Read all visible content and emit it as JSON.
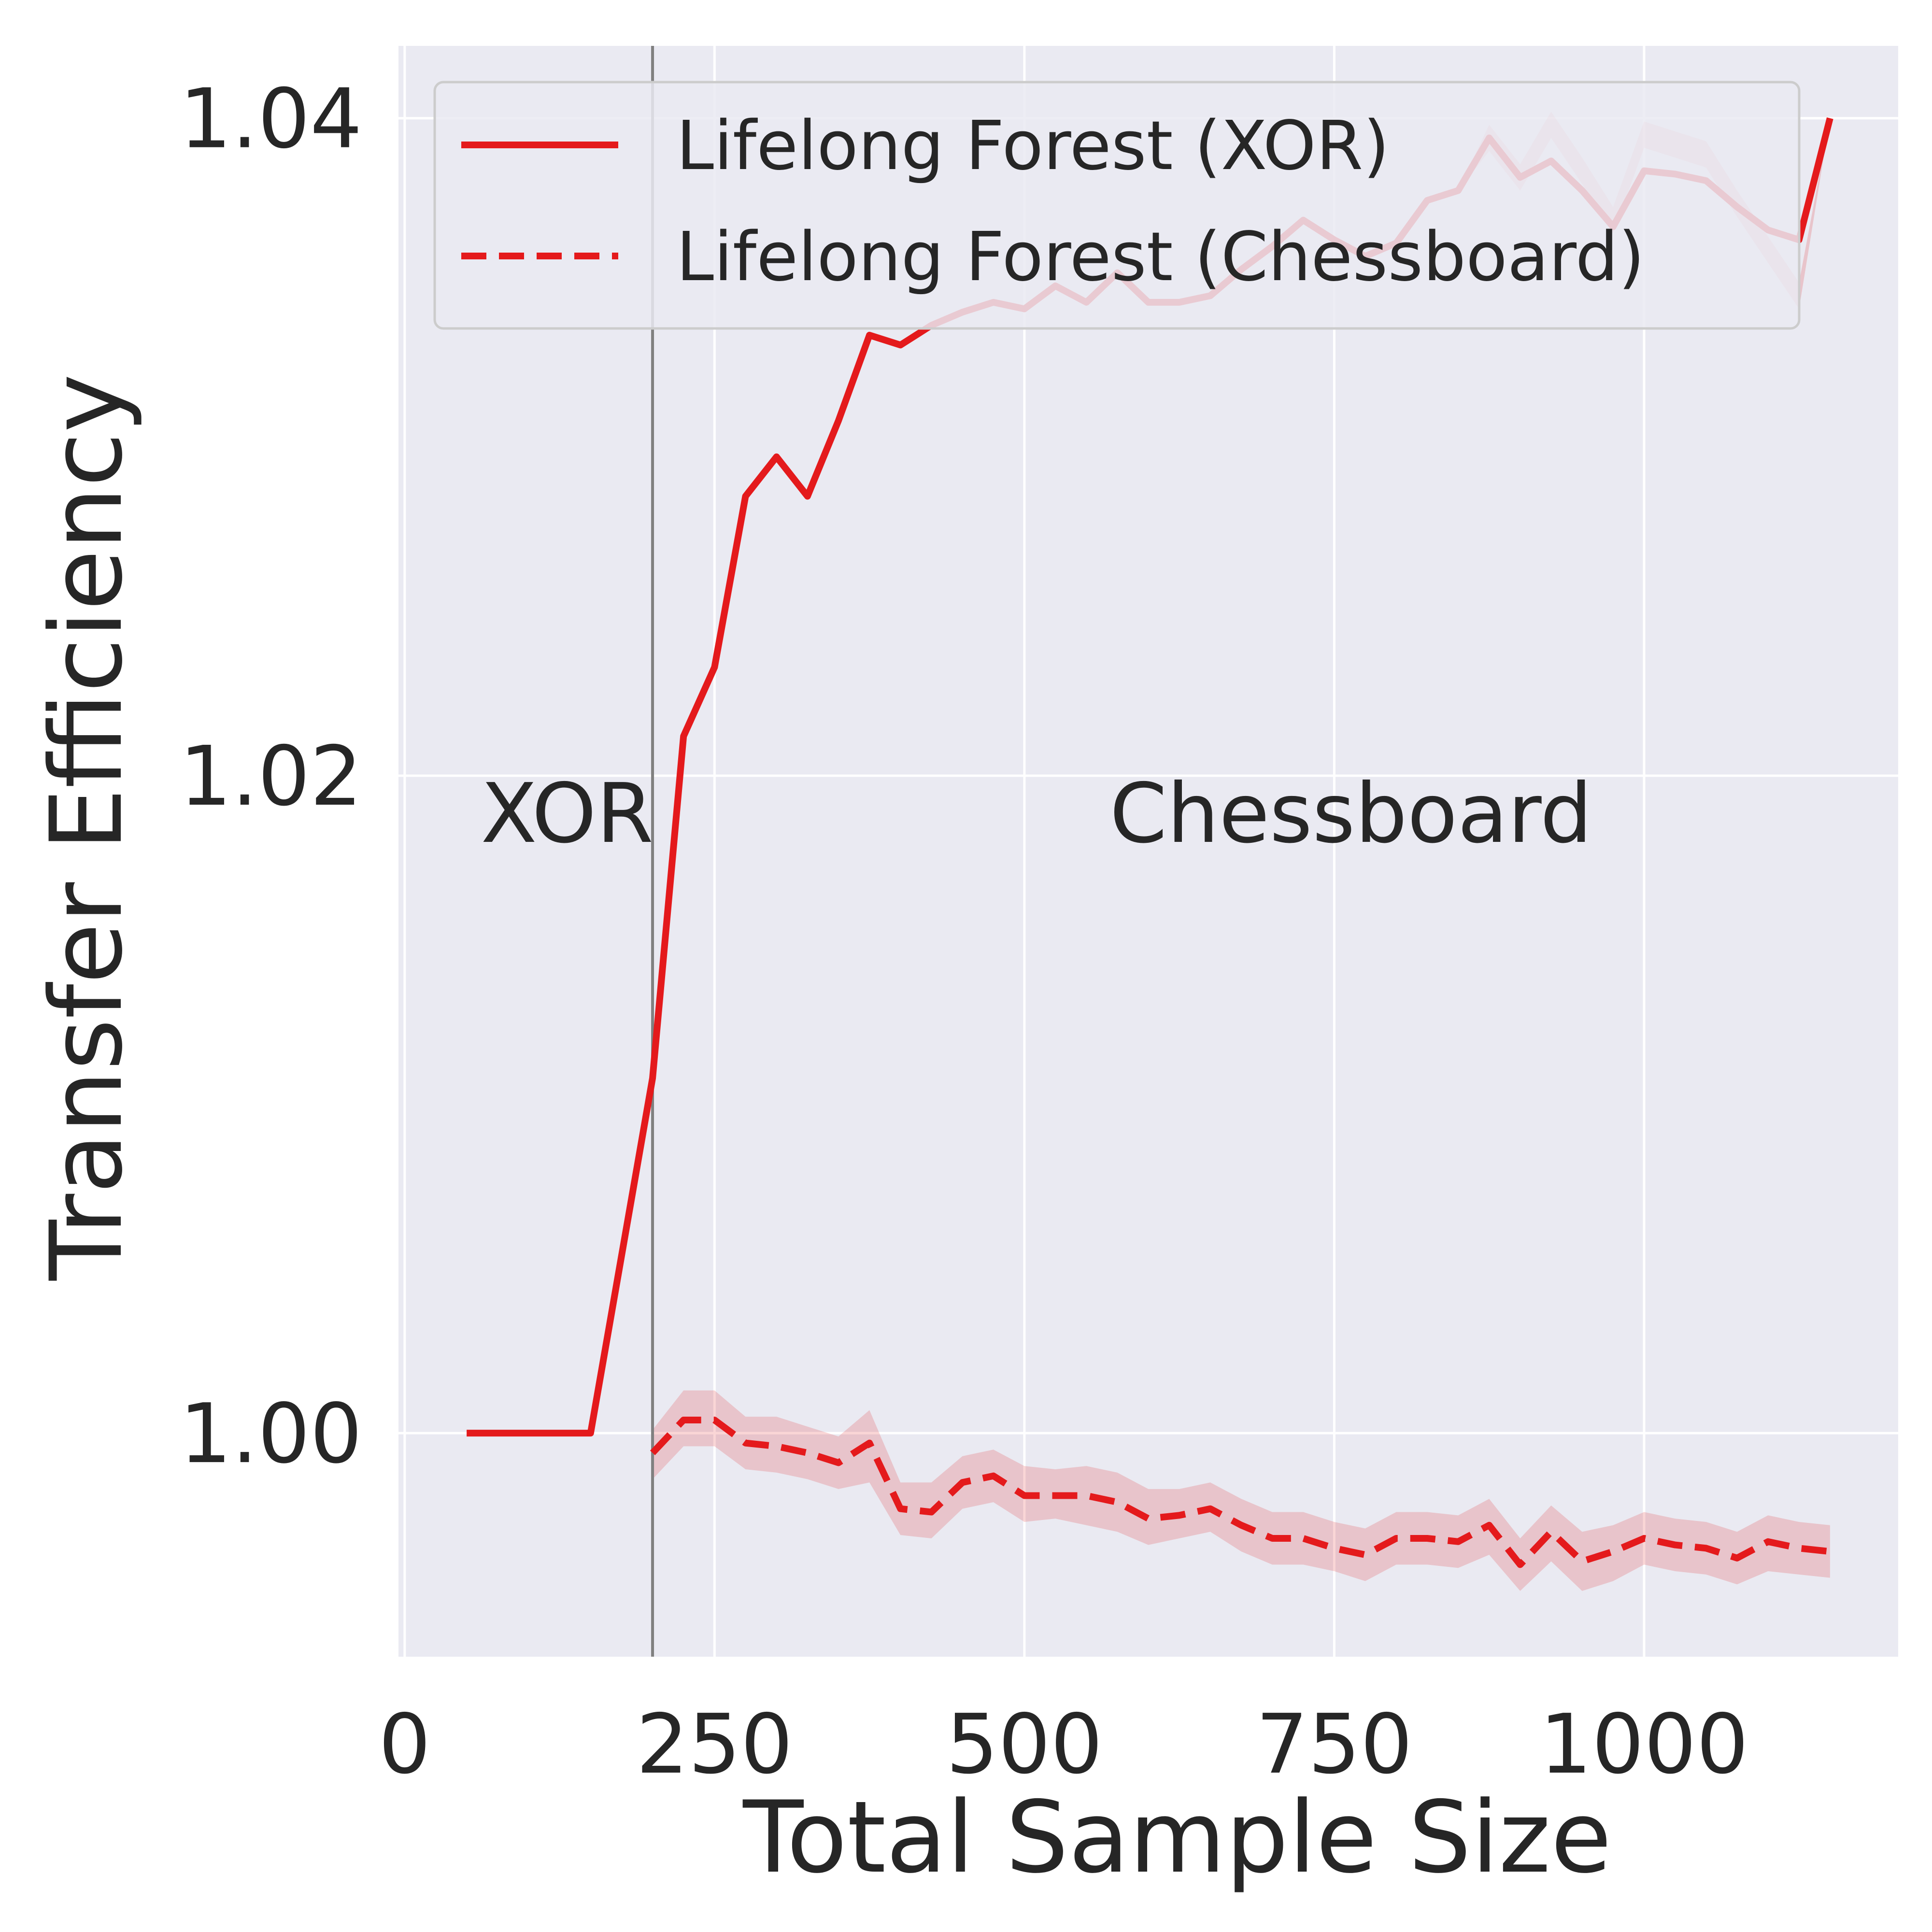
{
  "colors": {
    "background": "#ffffff",
    "plot_face": "#eaeaf2",
    "grid": "#ffffff",
    "line": "#e41a1c",
    "band": "#e41a1c",
    "divider": "#808080",
    "text": "#262626"
  },
  "chart_data": {
    "type": "line",
    "xlabel": "Total Sample Size",
    "ylabel": "Transfer Efficiency",
    "xlim": [
      -5,
      1205
    ],
    "ylim": [
      0.9932,
      1.0422
    ],
    "xticks": [
      0,
      250,
      500,
      750,
      1000
    ],
    "xtick_labels": [
      "0",
      "250",
      "500",
      "750",
      "1000"
    ],
    "yticks": [
      1.0,
      1.02,
      1.04
    ],
    "ytick_labels": [
      "1.00",
      "1.02",
      "1.04"
    ],
    "grid": true,
    "legend_position": "top-right",
    "vertical_line_x": 200,
    "annotations": [
      {
        "id": "xor",
        "text": "XOR",
        "x": 40,
        "y": 1.0185
      },
      {
        "id": "chess",
        "text": "Chessboard",
        "x": 600,
        "y": 1.0185
      }
    ],
    "series": [
      {
        "name": "Lifelong Forest (XOR)",
        "style": "solid",
        "x": [
          50,
          75,
          100,
          125,
          150,
          200,
          225,
          250,
          275,
          300,
          325,
          350,
          375,
          400,
          425,
          450,
          475,
          500,
          525,
          550,
          575,
          600,
          625,
          650,
          675,
          700,
          725,
          750,
          775,
          800,
          825,
          850,
          875,
          900,
          925,
          950,
          975,
          1000,
          1025,
          1050,
          1075,
          1100,
          1125,
          1150
        ],
        "y": [
          1.0,
          1.0,
          1.0,
          1.0,
          1.0,
          1.0108,
          1.0212,
          1.0233,
          1.0285,
          1.0297,
          1.0285,
          1.0308,
          1.0334,
          1.0331,
          1.0337,
          1.0341,
          1.0344,
          1.0342,
          1.0349,
          1.0344,
          1.0353,
          1.0344,
          1.0344,
          1.0346,
          1.0354,
          1.0361,
          1.0369,
          1.0363,
          1.0358,
          1.0362,
          1.0375,
          1.0378,
          1.0394,
          1.0382,
          1.0387,
          1.0378,
          1.0367,
          1.0384,
          1.0383,
          1.0381,
          1.0373,
          1.0366,
          1.0363,
          1.04
        ],
        "band_lower": [
          1.0,
          1.0,
          1.0,
          1.0,
          1.0,
          1.0108,
          1.0212,
          1.0233,
          1.0285,
          1.0297,
          1.0285,
          1.0308,
          1.0334,
          1.0331,
          1.0337,
          1.0341,
          1.0344,
          1.0342,
          1.0349,
          1.0344,
          1.0353,
          1.0344,
          1.0344,
          1.0346,
          1.0354,
          1.0361,
          1.0369,
          1.0363,
          1.0358,
          1.0362,
          1.0375,
          1.0378,
          1.039,
          1.0378,
          1.0394,
          1.038,
          1.0365,
          1.0391,
          1.0388,
          1.0385,
          1.037,
          1.0356,
          1.0342,
          1.04
        ],
        "band_upper": [
          1.0,
          1.0,
          1.0,
          1.0,
          1.0,
          1.0108,
          1.0212,
          1.0233,
          1.0285,
          1.0297,
          1.0285,
          1.0308,
          1.0334,
          1.0331,
          1.0337,
          1.0341,
          1.0344,
          1.0342,
          1.0349,
          1.0344,
          1.0353,
          1.0344,
          1.0344,
          1.0346,
          1.0354,
          1.0361,
          1.0369,
          1.0363,
          1.0358,
          1.0362,
          1.0375,
          1.0378,
          1.0398,
          1.0386,
          1.0402,
          1.0388,
          1.0373,
          1.0399,
          1.0396,
          1.0393,
          1.0378,
          1.0364,
          1.035,
          1.04
        ]
      },
      {
        "name": "Lifelong Forest (Chessboard)",
        "style": "dashed",
        "x": [
          200,
          225,
          250,
          275,
          300,
          325,
          350,
          375,
          400,
          425,
          450,
          475,
          500,
          525,
          550,
          575,
          600,
          625,
          650,
          675,
          700,
          725,
          750,
          775,
          800,
          825,
          850,
          875,
          900,
          925,
          950,
          975,
          1000,
          1025,
          1050,
          1075,
          1100,
          1125,
          1150
        ],
        "y": [
          0.9994,
          1.0004,
          1.0004,
          0.9997,
          0.9996,
          0.9994,
          0.9991,
          0.9997,
          0.9977,
          0.9976,
          0.9985,
          0.9987,
          0.9981,
          0.9981,
          0.9981,
          0.9979,
          0.9974,
          0.9975,
          0.9977,
          0.9972,
          0.9968,
          0.9968,
          0.9965,
          0.9963,
          0.9968,
          0.9968,
          0.9967,
          0.9972,
          0.996,
          0.997,
          0.9961,
          0.9964,
          0.9968,
          0.9966,
          0.9965,
          0.9962,
          0.9967,
          0.9965,
          0.9964
        ],
        "band_lower": [
          0.9986,
          0.9996,
          0.9996,
          0.9989,
          0.9988,
          0.9986,
          0.9983,
          0.9985,
          0.9969,
          0.9968,
          0.9977,
          0.9979,
          0.9973,
          0.9974,
          0.9972,
          0.997,
          0.9966,
          0.9968,
          0.997,
          0.9964,
          0.996,
          0.996,
          0.9958,
          0.9955,
          0.996,
          0.996,
          0.9959,
          0.9963,
          0.9952,
          0.9961,
          0.9952,
          0.9955,
          0.996,
          0.9958,
          0.9957,
          0.9954,
          0.9958,
          0.9957,
          0.9956
        ],
        "band_upper": [
          1.0001,
          1.0013,
          1.0013,
          1.0005,
          1.0005,
          1.0002,
          0.9999,
          1.0007,
          0.9985,
          0.9985,
          0.9993,
          0.9995,
          0.999,
          0.9989,
          0.999,
          0.9988,
          0.9983,
          0.9983,
          0.9985,
          0.998,
          0.9976,
          0.9976,
          0.9973,
          0.9971,
          0.9976,
          0.9976,
          0.9975,
          0.998,
          0.9968,
          0.9978,
          0.997,
          0.9972,
          0.9976,
          0.9974,
          0.9973,
          0.997,
          0.9975,
          0.9973,
          0.9972
        ]
      }
    ]
  }
}
